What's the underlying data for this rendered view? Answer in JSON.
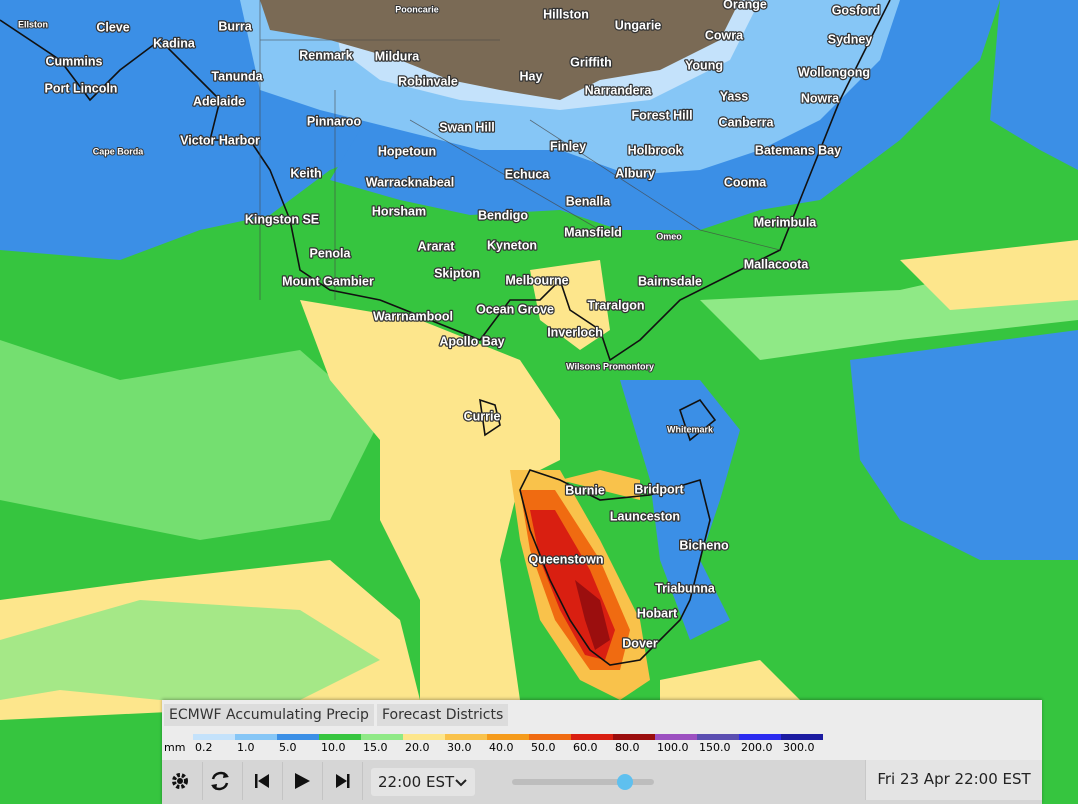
{
  "map": {
    "places": [
      "Ellston",
      "Cleve",
      "Burra",
      "Pooncarie",
      "Hillston",
      "Ungarie",
      "Orange",
      "Gosford",
      "Kadina",
      "Cowra",
      "Sydney",
      "Cummins",
      "Renmark",
      "Mildura",
      "Griffith",
      "Young",
      "Tanunda",
      "Robinvale",
      "Hay",
      "Wollongong",
      "Port Lincoln",
      "Narrandera",
      "Yass",
      "Nowra",
      "Adelaide",
      "Forest Hill",
      "Pinnaroo",
      "Swan Hill",
      "Canberra",
      "Cape Borda",
      "Victor Harbor",
      "Finley",
      "Holbrook",
      "Batemans Bay",
      "Hopetoun",
      "Keith",
      "Echuca",
      "Albury",
      "Cooma",
      "Warracknabeal",
      "Benalla",
      "Horsham",
      "Bendigo",
      "Kingston SE",
      "Merimbula",
      "Mansfield",
      "Omeo",
      "Ararat",
      "Kyneton",
      "Penola",
      "Skipton",
      "Mallacoota",
      "Melbourne",
      "Bairnsdale",
      "Mount Gambier",
      "Ocean Grove",
      "Traralgon",
      "Warrnambool",
      "Inverloch",
      "Apollo Bay",
      "Wilsons Promontory",
      "Currie",
      "Whitemark",
      "Burnie",
      "Bridport",
      "Launceston",
      "Bicheno",
      "Queenstown",
      "Triabunna",
      "Hobart",
      "Dover"
    ]
  },
  "panel": {
    "tabs": [
      "ECMWF Accumulating Precip",
      "Forecast Districts"
    ],
    "legend": {
      "unit": "mm",
      "items": [
        {
          "label": "0.2",
          "color": "#c4e2fb"
        },
        {
          "label": "1.0",
          "color": "#86c6f6"
        },
        {
          "label": "5.0",
          "color": "#3b8fe6"
        },
        {
          "label": "10.0",
          "color": "#36c53f"
        },
        {
          "label": "15.0",
          "color": "#8fe986"
        },
        {
          "label": "20.0",
          "color": "#fde68c"
        },
        {
          "label": "30.0",
          "color": "#f9c24b"
        },
        {
          "label": "40.0",
          "color": "#f59b1b"
        },
        {
          "label": "50.0",
          "color": "#f06b11"
        },
        {
          "label": "60.0",
          "color": "#d91f11"
        },
        {
          "label": "80.0",
          "color": "#9b0e0e"
        },
        {
          "label": "100.0",
          "color": "#9c50c0"
        },
        {
          "label": "150.0",
          "color": "#5b4eb1"
        },
        {
          "label": "200.0",
          "color": "#2b2bf0"
        },
        {
          "label": "300.0",
          "color": "#1b1ba1"
        }
      ]
    }
  },
  "controls": {
    "time_select": "22:00 EST",
    "datetime": "Fri 23 Apr 22:00 EST"
  }
}
